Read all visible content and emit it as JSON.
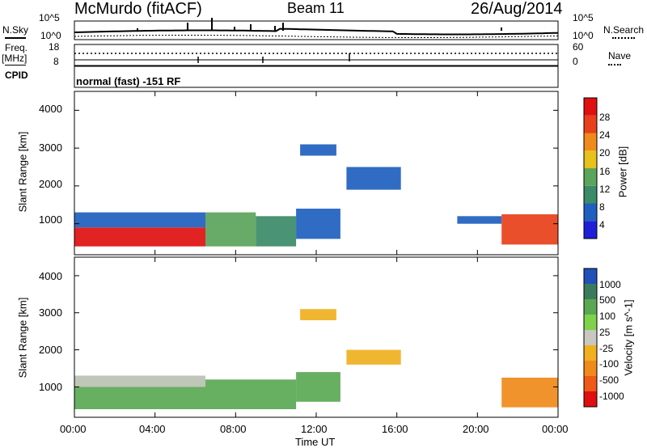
{
  "header": {
    "station": "McMurdo (fitACF)",
    "beam": "Beam 11",
    "date": "26/Aug/2014"
  },
  "top_panels": {
    "nsky_label": "N.Sky",
    "nsky_tick_top": "10^5",
    "nsky_tick_bottom": "10^0",
    "nsearch_label": "N.Search",
    "nsearch_tick_top": "10^5",
    "nsearch_tick_bottom": "10^0",
    "freq_label": "Freq.",
    "freq_unit": "[MHz]",
    "freq_ticks": [
      "18",
      "8"
    ],
    "nave_label": "Nave",
    "nave_ticks": [
      "60",
      "0"
    ],
    "cpid_label": "CPID",
    "mode_text": "normal (fast) -151 RF"
  },
  "colorbars": {
    "power": {
      "label": "Power [dB]",
      "ticks": [
        "28",
        "24",
        "20",
        "16",
        "12",
        "8",
        "4"
      ],
      "colors": [
        "#1f1fd8",
        "#1f5fbf",
        "#3b8a68",
        "#5ba45b",
        "#e6c21a",
        "#f08a1a",
        "#e8401a",
        "#e01010"
      ]
    },
    "velocity": {
      "label": "Velocity [m s^-1]",
      "ticks": [
        "1000",
        "500",
        "100",
        "25",
        "-25",
        "-100",
        "-500",
        "-1000"
      ],
      "colors": [
        "#2050b8",
        "#3c7a5c",
        "#5aa854",
        "#7fd24a",
        "#c8c8c0",
        "#f0b020",
        "#f08a1a",
        "#ee5a18",
        "#e01010"
      ]
    }
  },
  "axes": {
    "ylabel": "Slant Range [km]",
    "yticks": [
      "4000",
      "3000",
      "2000",
      "1000"
    ],
    "xticks": [
      "00:00",
      "04:00",
      "08:00",
      "12:00",
      "16:00",
      "20:00",
      "00:00"
    ],
    "xlabel": "Time UT"
  },
  "chart_data": [
    {
      "type": "heatmap",
      "title": "Beam 11",
      "xlabel": "Time UT",
      "ylabel": "Slant Range [km]",
      "xlim": [
        0,
        24
      ],
      "ylim": [
        180,
        4500
      ],
      "colorbar": "Power [dB]",
      "regions": [
        {
          "x": [
            0.0,
            6.5
          ],
          "y": [
            400,
            900
          ],
          "value": 28
        },
        {
          "x": [
            0.0,
            6.5
          ],
          "y": [
            900,
            1300
          ],
          "value": 6
        },
        {
          "x": [
            6.5,
            9.0
          ],
          "y": [
            400,
            1300
          ],
          "value": 14
        },
        {
          "x": [
            9.0,
            11.0
          ],
          "y": [
            400,
            1200
          ],
          "value": 10
        },
        {
          "x": [
            11.0,
            13.2
          ],
          "y": [
            600,
            1400
          ],
          "value": 6
        },
        {
          "x": [
            21.2,
            24.0
          ],
          "y": [
            450,
            1250
          ],
          "value": 26
        },
        {
          "x": [
            19.0,
            21.2
          ],
          "y": [
            1000,
            1200
          ],
          "value": 6
        },
        {
          "x": [
            11.2,
            13.0
          ],
          "y": [
            2800,
            3100
          ],
          "value": 6
        },
        {
          "x": [
            13.5,
            16.2
          ],
          "y": [
            1900,
            2500
          ],
          "value": 6
        }
      ]
    },
    {
      "type": "heatmap",
      "title": "",
      "xlabel": "Time UT",
      "ylabel": "Slant Range [km]",
      "xlim": [
        0,
        24
      ],
      "ylim": [
        180,
        4500
      ],
      "colorbar": "Velocity [m s^-1]",
      "regions": [
        {
          "x": [
            0.0,
            6.5
          ],
          "y": [
            400,
            1300
          ],
          "value": 100
        },
        {
          "x": [
            0.0,
            6.5
          ],
          "y": [
            1000,
            1300
          ],
          "value": 0
        },
        {
          "x": [
            6.5,
            11.0
          ],
          "y": [
            400,
            1200
          ],
          "value": 250
        },
        {
          "x": [
            11.0,
            13.2
          ],
          "y": [
            600,
            1400
          ],
          "value": 250
        },
        {
          "x": [
            21.2,
            24.0
          ],
          "y": [
            450,
            1250
          ],
          "value": -500
        },
        {
          "x": [
            13.5,
            16.2
          ],
          "y": [
            1600,
            2000
          ],
          "value": -100
        },
        {
          "x": [
            11.2,
            13.0
          ],
          "y": [
            2800,
            3100
          ],
          "value": -100
        }
      ]
    }
  ]
}
